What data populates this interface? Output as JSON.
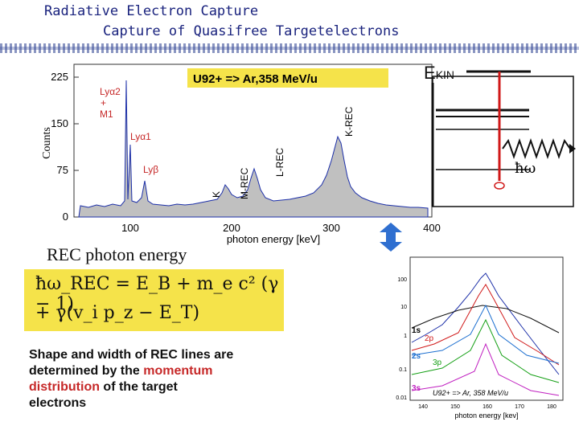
{
  "slide": {
    "title_line1": "Radiative Electron Capture",
    "title_line2": "Capture of Quasifree Targetelectrons"
  },
  "main_plot": {
    "annotation": "U92+ => Ar,358 MeV/u",
    "y_ticks": [
      "225",
      "150",
      "75",
      "0"
    ],
    "x_ticks": [
      "100",
      "200",
      "300",
      "400"
    ],
    "ylabel": "Counts",
    "xlabel": "photon energy [keV]",
    "labels": {
      "ly_a2": "Lyα2",
      "plus": "+",
      "m1": "M1",
      "ly_a1": "Lyα1",
      "ly_b": "Lyβ",
      "k_rec": "K-REC",
      "l_rec": "L-REC",
      "m_rec": "M-REC",
      "k_shell": "K"
    }
  },
  "rec_section": {
    "heading": "REC photon energy",
    "formula_line1": "ħω_REC = E_B + m_e c² (γ − 1)",
    "formula_line2": "+ γ(v_i p_z − E_T)"
  },
  "description": {
    "part1": "Shape and width of REC lines are determined by the ",
    "highlight": "momentum distribution",
    "part2": " of the target electrons"
  },
  "energy_diagram": {
    "label": "E",
    "label_sub": "KIN",
    "photon_label": "ħω"
  },
  "inset_plot": {
    "y_ticks": [
      "100",
      "10",
      "1",
      "0.1",
      "0.01"
    ],
    "x_ticks": [
      "140",
      "150",
      "160",
      "170",
      "180"
    ],
    "xlabel": "photon energy [kev]",
    "annotation": "U92+ => Ar, 358 MeV/u",
    "series_labels": [
      "1s",
      "2p",
      "2s",
      "3p",
      "3s"
    ]
  },
  "colors": {
    "title": "#1a237e",
    "formula_bg": "#f5e34a",
    "highlight": "#c62828",
    "spectrum_fill": "#c0c0c0",
    "spectrum_line": "#1c2fa8",
    "arrow": "#2f6fd0",
    "transition": "#d01818"
  }
}
